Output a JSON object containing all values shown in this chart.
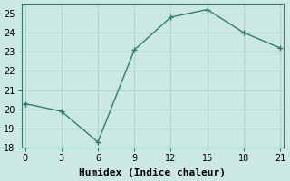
{
  "xlabel": "Humidex (Indice chaleur)",
  "x": [
    0,
    3,
    6,
    9,
    12,
    15,
    18,
    21
  ],
  "y": [
    20.3,
    19.9,
    18.3,
    23.1,
    24.8,
    25.2,
    24.0,
    23.2
  ],
  "line_color": "#2e7d6e",
  "marker": "+",
  "marker_size": 5,
  "xlim": [
    -0.3,
    21.3
  ],
  "ylim": [
    18,
    25.5
  ],
  "xticks": [
    0,
    3,
    6,
    9,
    12,
    15,
    18,
    21
  ],
  "yticks": [
    18,
    19,
    20,
    21,
    22,
    23,
    24,
    25
  ],
  "bg_color": "#cce8e5",
  "grid_color": "#b0d4d0",
  "tick_fontsize": 7,
  "label_fontsize": 8
}
